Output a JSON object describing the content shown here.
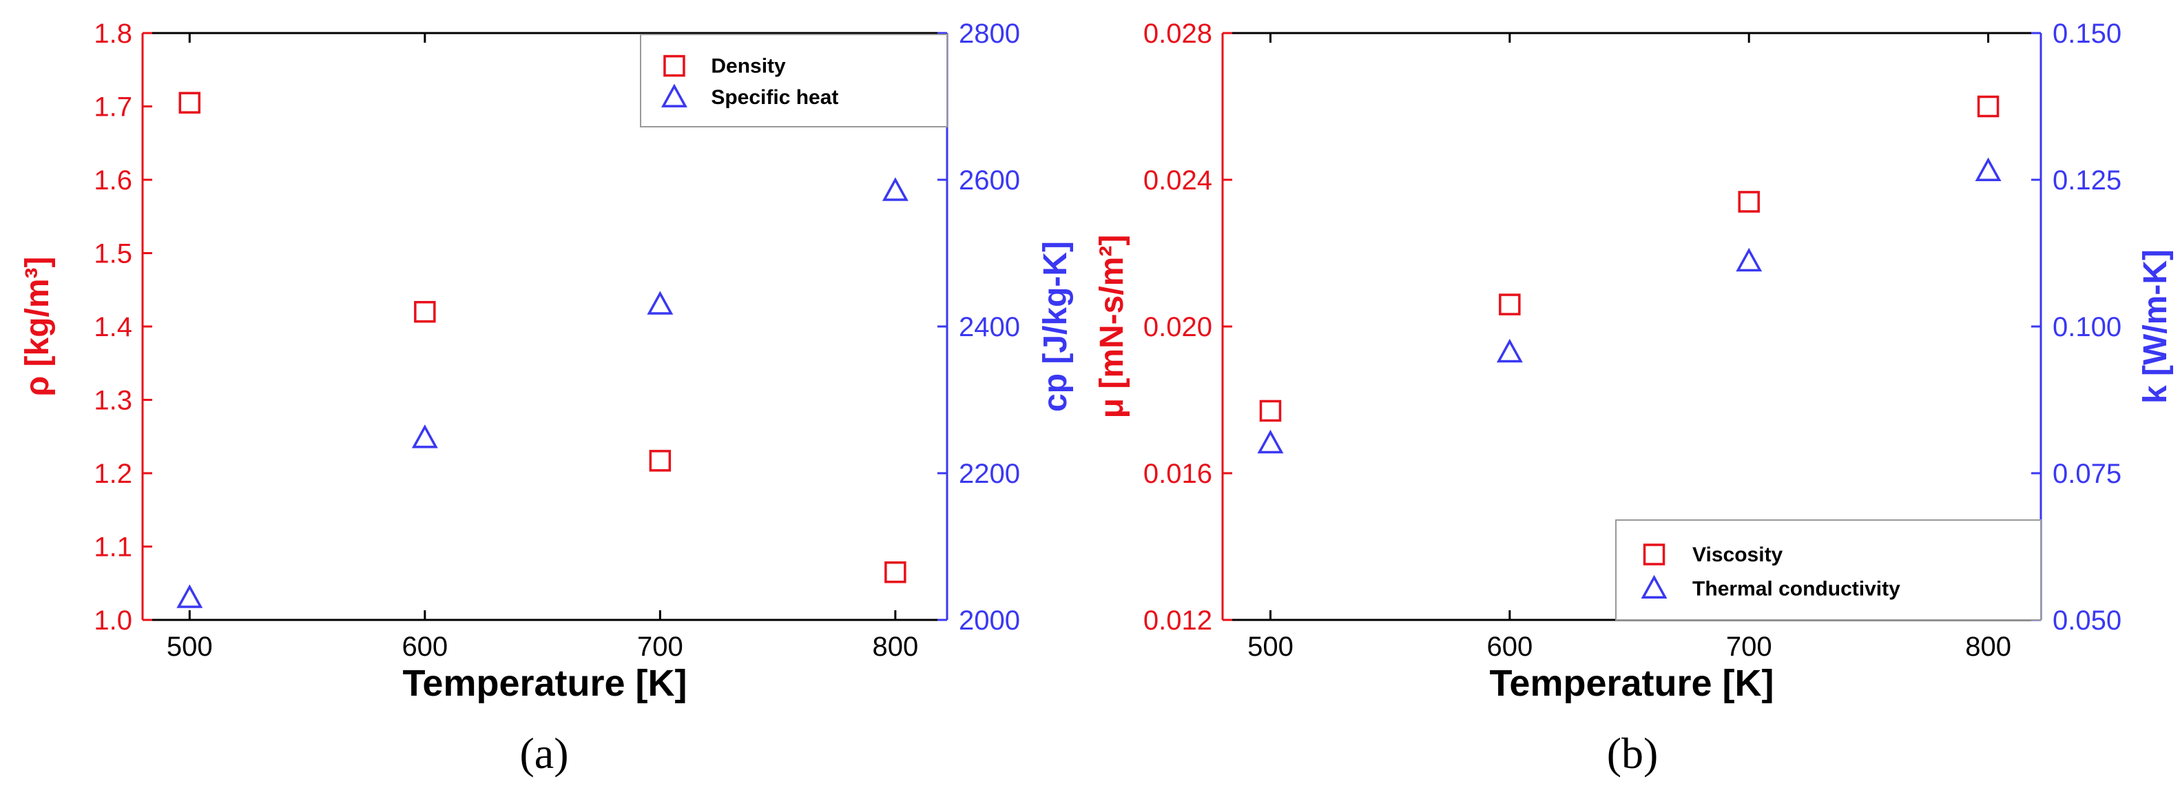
{
  "chart_data": [
    {
      "type": "scatter",
      "panel": "(a)",
      "xlabel": "Temperature [K]",
      "xticks": [
        500,
        600,
        700,
        800
      ],
      "xlim": [
        480,
        822
      ],
      "ylabel_left": "ρ [kg/m³]",
      "ylabel_right": "cp [J/kg-K]",
      "ylim_left": [
        1.0,
        1.8
      ],
      "ylim_right": [
        2000,
        2800
      ],
      "yticks_left": [
        "1.0",
        "1.1",
        "1.2",
        "1.3",
        "1.4",
        "1.5",
        "1.6",
        "1.7",
        "1.8"
      ],
      "yticks_right": [
        "2000",
        "2200",
        "2400",
        "2600",
        "2800"
      ],
      "legend_position": "top-right",
      "series": [
        {
          "name": "Density",
          "axis": "left",
          "marker": "square",
          "color": "#e8101a",
          "x": [
            500,
            600,
            700,
            800
          ],
          "y": [
            1.705,
            1.42,
            1.217,
            1.065
          ]
        },
        {
          "name": "Specific heat",
          "axis": "right",
          "marker": "triangle",
          "color": "#3a38f2",
          "x": [
            500,
            600,
            700,
            800
          ],
          "y": [
            2030,
            2248,
            2430,
            2585
          ]
        }
      ]
    },
    {
      "type": "scatter",
      "panel": "(b)",
      "xlabel": "Temperature [K]",
      "xticks": [
        500,
        600,
        700,
        800
      ],
      "xlim": [
        480,
        822
      ],
      "ylabel_left": "μ [mN-s/m²]",
      "ylabel_right": "k [W/m-K]",
      "ylim_left": [
        0.012,
        0.028
      ],
      "ylim_right": [
        0.05,
        0.15
      ],
      "yticks_left": [
        "0.012",
        "0.016",
        "0.020",
        "0.024",
        "0.028"
      ],
      "yticks_right": [
        "0.050",
        "0.075",
        "0.100",
        "0.125",
        "0.150"
      ],
      "legend_position": "bottom-right",
      "series": [
        {
          "name": "Viscosity",
          "axis": "left",
          "marker": "square",
          "color": "#e8101a",
          "x": [
            500,
            600,
            700,
            800
          ],
          "y": [
            0.0177,
            0.0206,
            0.0234,
            0.026
          ]
        },
        {
          "name": "Thermal conductivity",
          "axis": "right",
          "marker": "triangle",
          "color": "#3a38f2",
          "x": [
            500,
            600,
            700,
            800
          ],
          "y": [
            0.0801,
            0.0956,
            0.1111,
            0.1265
          ]
        }
      ]
    }
  ]
}
